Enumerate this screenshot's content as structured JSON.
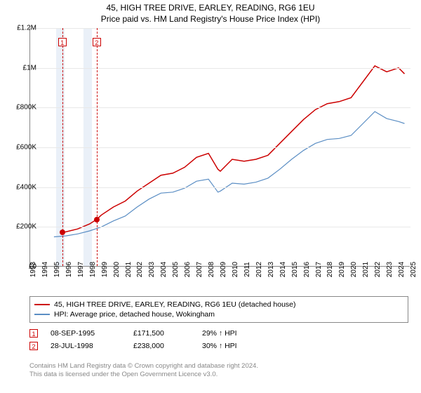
{
  "title": "45, HIGH TREE DRIVE, EARLEY, READING, RG6 1EU",
  "subtitle": "Price paid vs. HM Land Registry's House Price Index (HPI)",
  "chart": {
    "type": "line",
    "background_color": "#ffffff",
    "grid_color": "#e8e8e8",
    "axis_color": "#888888",
    "xlim": [
      1993,
      2025
    ],
    "ylim": [
      0,
      1200000
    ],
    "ytick_step": 200000,
    "ytick_labels": [
      "£0",
      "£200K",
      "£400K",
      "£600K",
      "£800K",
      "£1M",
      "£1.2M"
    ],
    "xtick_years": [
      1993,
      1994,
      1995,
      1996,
      1997,
      1998,
      1999,
      2000,
      2001,
      2002,
      2003,
      2004,
      2005,
      2006,
      2007,
      2008,
      2009,
      2010,
      2011,
      2012,
      2013,
      2014,
      2015,
      2016,
      2017,
      2018,
      2019,
      2020,
      2021,
      2022,
      2023,
      2024,
      2025
    ],
    "shaded_bands": [
      {
        "from": 1995.2,
        "to": 1995.9,
        "color": "#eaf0f8"
      },
      {
        "from": 1997.5,
        "to": 1998.2,
        "color": "#eaf0f8"
      }
    ],
    "sale_markers": [
      {
        "n": "1",
        "year": 1995.7,
        "price": 171500
      },
      {
        "n": "2",
        "year": 1998.6,
        "price": 238000
      }
    ],
    "series": [
      {
        "name": "price_paid",
        "label": "45, HIGH TREE DRIVE, EARLEY, READING, RG6 1EU (detached house)",
        "color": "#cc0000",
        "line_width": 1.5,
        "data": [
          [
            1995.7,
            171500
          ],
          [
            1996,
            175000
          ],
          [
            1997,
            190000
          ],
          [
            1998,
            215000
          ],
          [
            1998.6,
            238000
          ],
          [
            1999,
            260000
          ],
          [
            2000,
            300000
          ],
          [
            2001,
            330000
          ],
          [
            2002,
            380000
          ],
          [
            2003,
            420000
          ],
          [
            2004,
            460000
          ],
          [
            2005,
            470000
          ],
          [
            2006,
            500000
          ],
          [
            2007,
            550000
          ],
          [
            2008,
            570000
          ],
          [
            2008.8,
            490000
          ],
          [
            2009,
            480000
          ],
          [
            2010,
            540000
          ],
          [
            2011,
            530000
          ],
          [
            2012,
            540000
          ],
          [
            2013,
            560000
          ],
          [
            2014,
            620000
          ],
          [
            2015,
            680000
          ],
          [
            2016,
            740000
          ],
          [
            2017,
            790000
          ],
          [
            2018,
            820000
          ],
          [
            2019,
            830000
          ],
          [
            2020,
            850000
          ],
          [
            2021,
            930000
          ],
          [
            2022,
            1010000
          ],
          [
            2023,
            980000
          ],
          [
            2024,
            1000000
          ],
          [
            2024.5,
            970000
          ]
        ]
      },
      {
        "name": "hpi",
        "label": "HPI: Average price, detached house, Wokingham",
        "color": "#5b8ec4",
        "line_width": 1.2,
        "data": [
          [
            1995,
            150000
          ],
          [
            1996,
            155000
          ],
          [
            1997,
            165000
          ],
          [
            1998,
            180000
          ],
          [
            1999,
            200000
          ],
          [
            2000,
            230000
          ],
          [
            2001,
            255000
          ],
          [
            2002,
            300000
          ],
          [
            2003,
            340000
          ],
          [
            2004,
            370000
          ],
          [
            2005,
            375000
          ],
          [
            2006,
            395000
          ],
          [
            2007,
            430000
          ],
          [
            2008,
            440000
          ],
          [
            2008.8,
            375000
          ],
          [
            2009,
            380000
          ],
          [
            2010,
            420000
          ],
          [
            2011,
            415000
          ],
          [
            2012,
            425000
          ],
          [
            2013,
            445000
          ],
          [
            2014,
            490000
          ],
          [
            2015,
            540000
          ],
          [
            2016,
            585000
          ],
          [
            2017,
            620000
          ],
          [
            2018,
            640000
          ],
          [
            2019,
            645000
          ],
          [
            2020,
            660000
          ],
          [
            2021,
            720000
          ],
          [
            2022,
            780000
          ],
          [
            2023,
            745000
          ],
          [
            2024,
            730000
          ],
          [
            2024.5,
            720000
          ]
        ]
      }
    ]
  },
  "legend": {
    "items": [
      {
        "color": "#cc0000",
        "label": "45, HIGH TREE DRIVE, EARLEY, READING, RG6 1EU (detached house)"
      },
      {
        "color": "#5b8ec4",
        "label": "HPI: Average price, detached house, Wokingham"
      }
    ]
  },
  "sales": [
    {
      "n": "1",
      "date": "08-SEP-1995",
      "price": "£171,500",
      "hpi_delta": "29% ↑ HPI"
    },
    {
      "n": "2",
      "date": "28-JUL-1998",
      "price": "£238,000",
      "hpi_delta": "30% ↑ HPI"
    }
  ],
  "attribution": {
    "line1": "Contains HM Land Registry data © Crown copyright and database right 2024.",
    "line2": "This data is licensed under the Open Government Licence v3.0."
  }
}
